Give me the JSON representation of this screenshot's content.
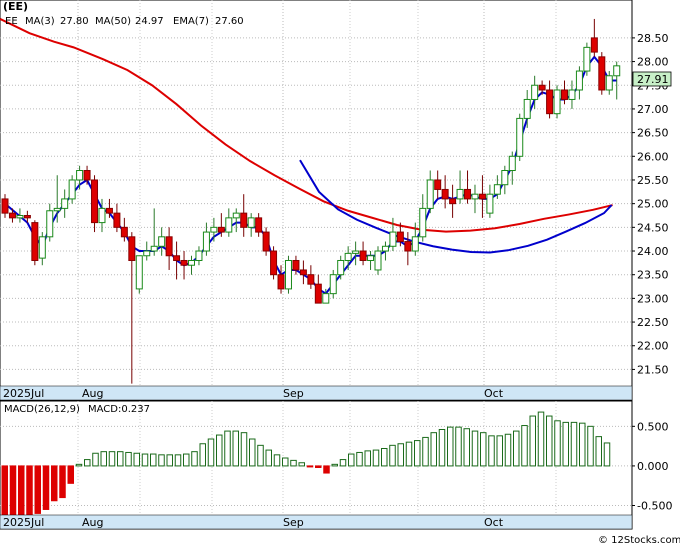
{
  "ticker": "(EE)",
  "copyright": "© 12Stocks.com",
  "colors": {
    "up": "#1a8a1a",
    "down": "#dd0000",
    "ma_fast": "#0000cc",
    "ma_slow": "#dd0000",
    "macd": "#1a6a1a",
    "axis_bar": "#cfe6f6",
    "price_tag": "#c8f0c8"
  },
  "legend": {
    "symbol": "EE",
    "ma3_label": "MA(3)",
    "ma3_value": "27.80",
    "ma50_label": "MA(50)",
    "ma50_value": "24.97",
    "ema7_label": "EMA(7)",
    "ema7_value": "27.60"
  },
  "last_price_label": "27.91",
  "macd_legend": {
    "label": "MACD(26,12,9)",
    "value_label": "MACD:0.237"
  },
  "chart_data": [
    {
      "type": "candlestick",
      "y_ticks": [
        "21.50",
        "22.00",
        "22.50",
        "23.00",
        "23.50",
        "24.00",
        "24.50",
        "25.00",
        "25.50",
        "26.00",
        "26.50",
        "27.00",
        "27.50",
        "28.00",
        "28.50"
      ],
      "x_labels": [
        "2025Jul",
        "Aug",
        "Sep",
        "Oct"
      ],
      "ylim": [
        21.15,
        29.3
      ],
      "candles": [
        [
          25.1,
          25.2,
          24.7,
          24.8
        ],
        [
          24.8,
          24.9,
          24.6,
          24.7
        ],
        [
          24.7,
          24.9,
          24.6,
          24.75
        ],
        [
          24.75,
          24.85,
          24.6,
          24.7
        ],
        [
          24.6,
          24.65,
          23.7,
          23.8
        ],
        [
          23.85,
          24.4,
          23.7,
          24.3
        ],
        [
          24.3,
          25.0,
          24.2,
          24.85
        ],
        [
          24.85,
          25.6,
          24.6,
          24.9
        ],
        [
          24.9,
          25.3,
          24.7,
          25.1
        ],
        [
          25.1,
          25.6,
          25.0,
          25.5
        ],
        [
          25.5,
          25.8,
          25.3,
          25.7
        ],
        [
          25.7,
          25.8,
          25.4,
          25.5
        ],
        [
          25.5,
          25.6,
          24.4,
          24.6
        ],
        [
          24.6,
          25.1,
          24.4,
          24.9
        ],
        [
          24.9,
          25.1,
          24.7,
          24.8
        ],
        [
          24.8,
          25.0,
          24.4,
          24.5
        ],
        [
          24.5,
          24.7,
          24.2,
          24.3
        ],
        [
          24.3,
          24.4,
          21.2,
          23.8
        ],
        [
          23.2,
          23.9,
          23.1,
          23.9
        ],
        [
          23.9,
          24.2,
          23.8,
          24.0
        ],
        [
          24.0,
          24.9,
          23.9,
          24.1
        ],
        [
          24.1,
          24.5,
          23.9,
          24.3
        ],
        [
          24.3,
          24.5,
          23.6,
          23.9
        ],
        [
          23.9,
          24.2,
          23.4,
          23.8
        ],
        [
          23.8,
          24.0,
          23.4,
          23.7
        ],
        [
          23.7,
          23.9,
          23.5,
          23.8
        ],
        [
          23.8,
          24.1,
          23.7,
          24.0
        ],
        [
          24.0,
          24.6,
          23.9,
          24.4
        ],
        [
          24.4,
          24.7,
          24.2,
          24.5
        ],
        [
          24.5,
          24.8,
          24.3,
          24.4
        ],
        [
          24.4,
          24.9,
          24.3,
          24.7
        ],
        [
          24.7,
          24.9,
          24.4,
          24.8
        ],
        [
          24.8,
          25.2,
          24.3,
          24.5
        ],
        [
          24.5,
          24.8,
          24.3,
          24.7
        ],
        [
          24.7,
          24.8,
          24.3,
          24.4
        ],
        [
          24.4,
          24.5,
          23.9,
          24.0
        ],
        [
          24.0,
          24.1,
          23.4,
          23.5
        ],
        [
          23.5,
          23.7,
          23.1,
          23.2
        ],
        [
          23.2,
          23.9,
          23.1,
          23.8
        ],
        [
          23.8,
          23.9,
          23.5,
          23.6
        ],
        [
          23.6,
          23.8,
          23.3,
          23.5
        ],
        [
          23.5,
          23.7,
          23.2,
          23.3
        ],
        [
          23.3,
          23.5,
          22.9,
          22.9
        ],
        [
          22.9,
          23.2,
          22.9,
          23.1
        ],
        [
          23.1,
          23.6,
          23.0,
          23.5
        ],
        [
          23.5,
          23.9,
          23.4,
          23.8
        ],
        [
          23.8,
          24.1,
          23.6,
          23.95
        ],
        [
          23.95,
          24.2,
          23.7,
          24.0
        ],
        [
          24.0,
          24.2,
          23.7,
          23.8
        ],
        [
          23.8,
          24.0,
          23.6,
          23.9
        ],
        [
          23.6,
          24.1,
          23.5,
          24.0
        ],
        [
          24.0,
          24.2,
          23.8,
          24.1
        ],
        [
          24.1,
          24.7,
          24.0,
          24.4
        ],
        [
          24.4,
          24.6,
          24.1,
          24.2
        ],
        [
          24.2,
          24.4,
          23.7,
          24.0
        ],
        [
          24.0,
          24.6,
          23.9,
          24.3
        ],
        [
          24.3,
          25.2,
          24.2,
          24.9
        ],
        [
          24.9,
          25.7,
          24.8,
          25.5
        ],
        [
          25.5,
          25.7,
          25.1,
          25.3
        ],
        [
          25.3,
          25.6,
          24.9,
          25.1
        ],
        [
          25.1,
          25.4,
          24.7,
          25.0
        ],
        [
          25.1,
          25.7,
          25.0,
          25.3
        ],
        [
          25.3,
          25.7,
          25.0,
          25.1
        ],
        [
          25.1,
          25.4,
          24.8,
          25.2
        ],
        [
          25.2,
          25.6,
          24.7,
          25.1
        ],
        [
          24.8,
          25.4,
          24.7,
          25.2
        ],
        [
          25.2,
          25.6,
          25.1,
          25.4
        ],
        [
          25.4,
          25.8,
          25.2,
          25.7
        ],
        [
          25.7,
          26.1,
          25.4,
          26.0
        ],
        [
          26.0,
          26.9,
          25.9,
          26.8
        ],
        [
          26.8,
          27.4,
          26.6,
          27.2
        ],
        [
          27.2,
          27.7,
          27.0,
          27.5
        ],
        [
          27.5,
          27.6,
          27.3,
          27.4
        ],
        [
          27.4,
          27.6,
          26.8,
          26.9
        ],
        [
          26.9,
          27.5,
          26.8,
          27.4
        ],
        [
          27.4,
          27.6,
          27.1,
          27.2
        ],
        [
          27.2,
          27.6,
          27.0,
          27.4
        ],
        [
          27.4,
          27.9,
          27.2,
          27.8
        ],
        [
          27.8,
          28.4,
          27.7,
          28.3
        ],
        [
          28.5,
          28.9,
          28.1,
          28.2
        ],
        [
          28.1,
          28.2,
          27.3,
          27.4
        ],
        [
          27.4,
          27.8,
          27.3,
          27.7
        ],
        [
          27.7,
          28.0,
          27.2,
          27.91
        ]
      ],
      "ma_fast_path": [
        [
          0,
          25.0
        ],
        [
          3,
          24.6
        ],
        [
          4,
          24.3
        ],
        [
          5,
          24.1
        ],
        [
          6,
          24.5
        ],
        [
          7,
          24.8
        ],
        [
          8,
          25.0
        ],
        [
          9,
          25.2
        ],
        [
          10,
          25.4
        ],
        [
          11,
          25.5
        ],
        [
          12,
          25.2
        ],
        [
          13,
          24.9
        ],
        [
          14,
          24.8
        ],
        [
          15,
          24.6
        ],
        [
          16,
          24.4
        ],
        [
          17,
          24.1
        ],
        [
          18,
          24.0
        ],
        [
          19,
          24.0
        ],
        [
          20,
          24.0
        ],
        [
          21,
          24.1
        ],
        [
          22,
          24.0
        ],
        [
          23,
          23.8
        ],
        [
          24,
          23.7
        ],
        [
          25,
          23.75
        ],
        [
          26,
          23.9
        ],
        [
          27,
          24.1
        ],
        [
          28,
          24.3
        ],
        [
          29,
          24.4
        ],
        [
          30,
          24.5
        ],
        [
          31,
          24.6
        ],
        [
          32,
          24.6
        ],
        [
          33,
          24.5
        ],
        [
          34,
          24.5
        ],
        [
          35,
          24.3
        ],
        [
          36,
          23.8
        ],
        [
          37,
          23.5
        ],
        [
          38,
          23.6
        ],
        [
          39,
          23.6
        ],
        [
          40,
          23.5
        ],
        [
          41,
          23.4
        ],
        [
          42,
          23.2
        ],
        [
          43,
          23.1
        ],
        [
          44,
          23.3
        ],
        [
          45,
          23.5
        ],
        [
          46,
          23.7
        ],
        [
          47,
          23.9
        ],
        [
          48,
          23.9
        ],
        [
          49,
          23.9
        ],
        [
          50,
          23.9
        ],
        [
          51,
          24.0
        ],
        [
          52,
          24.2
        ],
        [
          53,
          24.2
        ],
        [
          54,
          24.1
        ],
        [
          55,
          24.2
        ],
        [
          56,
          24.5
        ],
        [
          57,
          24.9
        ],
        [
          58,
          25.1
        ],
        [
          59,
          25.15
        ],
        [
          60,
          25.1
        ],
        [
          61,
          25.15
        ],
        [
          62,
          25.2
        ],
        [
          63,
          25.15
        ],
        [
          64,
          25.1
        ],
        [
          65,
          25.1
        ],
        [
          66,
          25.2
        ],
        [
          67,
          25.5
        ],
        [
          68,
          25.8
        ],
        [
          69,
          26.3
        ],
        [
          70,
          26.8
        ],
        [
          71,
          27.2
        ],
        [
          72,
          27.35
        ],
        [
          73,
          27.3
        ],
        [
          74,
          27.2
        ],
        [
          75,
          27.2
        ],
        [
          76,
          27.3
        ],
        [
          77,
          27.5
        ],
        [
          78,
          27.9
        ],
        [
          79,
          28.1
        ],
        [
          80,
          27.9
        ],
        [
          81,
          27.6
        ],
        [
          82,
          27.6
        ]
      ],
      "ma_slow_path": [
        [
          0,
          25.92
        ],
        [
          5,
          25.25
        ],
        [
          10,
          24.88
        ],
        [
          15,
          24.66
        ],
        [
          20,
          24.49
        ],
        [
          25,
          24.33
        ],
        [
          30,
          24.2
        ],
        [
          35,
          24.1
        ],
        [
          40,
          24.03
        ],
        [
          45,
          23.98
        ],
        [
          50,
          23.97
        ],
        [
          55,
          24.02
        ],
        [
          60,
          24.11
        ],
        [
          65,
          24.24
        ],
        [
          70,
          24.41
        ],
        [
          75,
          24.59
        ],
        [
          80,
          24.8
        ],
        [
          82,
          24.97
        ]
      ],
      "ema_path": [
        [
          -1,
          28.9
        ],
        [
          5,
          28.6
        ],
        [
          10,
          28.42
        ],
        [
          14,
          28.3
        ],
        [
          20,
          28.05
        ],
        [
          25,
          27.82
        ],
        [
          30,
          27.5
        ],
        [
          35,
          27.1
        ],
        [
          40,
          26.65
        ],
        [
          45,
          26.25
        ],
        [
          50,
          25.9
        ],
        [
          55,
          25.6
        ],
        [
          60,
          25.32
        ],
        [
          65,
          25.05
        ],
        [
          70,
          24.85
        ],
        [
          75,
          24.7
        ],
        [
          80,
          24.55
        ],
        [
          85,
          24.45
        ],
        [
          90,
          24.41
        ],
        [
          95,
          24.43
        ],
        [
          100,
          24.48
        ],
        [
          105,
          24.57
        ],
        [
          110,
          24.68
        ],
        [
          115,
          24.77
        ],
        [
          120,
          24.87
        ],
        [
          124,
          24.97
        ]
      ]
    },
    {
      "type": "bar",
      "y_ticks": [
        "-0.500",
        "0.000",
        "0.500"
      ],
      "x_labels": [
        "2025Jul",
        "Aug",
        "Sep",
        "Oct"
      ],
      "ylim": [
        -0.62,
        0.82
      ],
      "values": [
        -0.62,
        -0.62,
        -0.62,
        -0.62,
        -0.6,
        -0.55,
        -0.44,
        -0.4,
        -0.22,
        0.02,
        0.08,
        0.16,
        0.18,
        0.18,
        0.18,
        0.17,
        0.16,
        0.15,
        0.15,
        0.14,
        0.14,
        0.14,
        0.15,
        0.18,
        0.28,
        0.34,
        0.39,
        0.44,
        0.44,
        0.42,
        0.34,
        0.26,
        0.2,
        0.14,
        0.1,
        0.07,
        0.04,
        -0.01,
        -0.02,
        -0.09,
        0.02,
        0.08,
        0.15,
        0.17,
        0.19,
        0.2,
        0.22,
        0.26,
        0.28,
        0.3,
        0.32,
        0.36,
        0.42,
        0.46,
        0.49,
        0.49,
        0.47,
        0.44,
        0.42,
        0.38,
        0.38,
        0.4,
        0.44,
        0.51,
        0.63,
        0.68,
        0.63,
        0.57,
        0.55,
        0.55,
        0.54,
        0.5,
        0.37,
        0.29
      ]
    }
  ]
}
